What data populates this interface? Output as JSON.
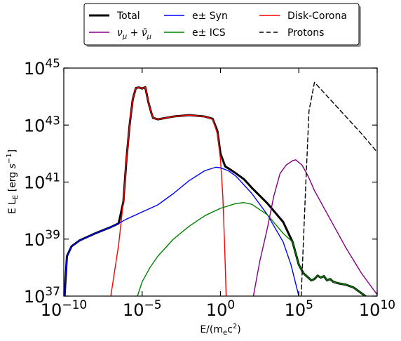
{
  "chart_data": {
    "type": "line",
    "title": "",
    "xlabel": {
      "main": "E/(m",
      "sub": "e",
      "tail": "c",
      "sup": "2",
      "close": ")"
    },
    "ylabel": {
      "main": "E L",
      "sub": "E",
      "tail": " [erg ",
      "unit": "s",
      "unitsup": "−1",
      "close": "]"
    },
    "x_scale": "log",
    "y_scale": "log",
    "xlim": [
      1e-10,
      10000000000.0
    ],
    "ylim": [
      1e+37,
      1e+45
    ],
    "x_ticks": [
      {
        "value": 1e-10,
        "base": "10",
        "exp": "−10"
      },
      {
        "value": 1e-05,
        "base": "10",
        "exp": "−5"
      },
      {
        "value": 1,
        "base": "10",
        "exp": "0"
      },
      {
        "value": 100000.0,
        "base": "10",
        "exp": "5"
      },
      {
        "value": 10000000000.0,
        "base": "10",
        "exp": "10"
      }
    ],
    "y_ticks": [
      {
        "value": 1e+37,
        "base": "10",
        "exp": "37"
      },
      {
        "value": 1e+39,
        "base": "10",
        "exp": "39"
      },
      {
        "value": 1e+41,
        "base": "10",
        "exp": "41"
      },
      {
        "value": 1e+43,
        "base": "10",
        "exp": "43"
      },
      {
        "value": 1e+45,
        "base": "10",
        "exp": "45"
      }
    ],
    "legend_position": "top-center",
    "series": [
      {
        "name": "Total",
        "color": "#000000",
        "style": "solid",
        "width": 3,
        "points": [
          [
            -9.95,
            37.0
          ],
          [
            -9.8,
            38.4
          ],
          [
            -9.5,
            38.75
          ],
          [
            -9,
            38.95
          ],
          [
            -8,
            39.2
          ],
          [
            -7,
            39.42
          ],
          [
            -6.5,
            39.55
          ],
          [
            -6.2,
            40.3
          ],
          [
            -6.0,
            41.8
          ],
          [
            -5.8,
            43.0
          ],
          [
            -5.6,
            43.9
          ],
          [
            -5.4,
            44.3
          ],
          [
            -5.2,
            44.32
          ],
          [
            -5.0,
            44.28
          ],
          [
            -4.8,
            44.33
          ],
          [
            -4.6,
            43.8
          ],
          [
            -4.4,
            43.4
          ],
          [
            -4.3,
            43.25
          ],
          [
            -4.0,
            43.2
          ],
          [
            -3.0,
            43.3
          ],
          [
            -2.0,
            43.35
          ],
          [
            -1.0,
            43.3
          ],
          [
            -0.5,
            43.22
          ],
          [
            -0.2,
            42.8
          ],
          [
            0.0,
            42.0
          ],
          [
            0.3,
            41.55
          ],
          [
            0.6,
            41.45
          ],
          [
            1.0,
            41.3
          ],
          [
            1.5,
            41.1
          ],
          [
            2,
            40.8
          ],
          [
            3,
            40.25
          ],
          [
            4,
            39.6
          ],
          [
            4.6,
            38.9
          ],
          [
            5,
            38.1
          ],
          [
            5.3,
            37.8
          ],
          [
            5.6,
            37.65
          ],
          [
            5.8,
            37.55
          ],
          [
            6.0,
            37.6
          ],
          [
            6.2,
            37.72
          ],
          [
            6.4,
            37.65
          ],
          [
            6.6,
            37.7
          ],
          [
            6.8,
            37.55
          ],
          [
            7.0,
            37.6
          ],
          [
            7.2,
            37.5
          ],
          [
            7.5,
            37.45
          ],
          [
            8,
            37.4
          ],
          [
            8.5,
            37.3
          ],
          [
            9,
            37.1
          ],
          [
            9.25,
            37.0
          ]
        ]
      },
      {
        "name": "Disk-Corona",
        "color": "#ff0000",
        "style": "solid",
        "width": 1.4,
        "points": [
          [
            -7.0,
            37.0
          ],
          [
            -6.5,
            38.8
          ],
          [
            -6.2,
            40.3
          ],
          [
            -6.0,
            41.8
          ],
          [
            -5.8,
            43.0
          ],
          [
            -5.6,
            43.9
          ],
          [
            -5.4,
            44.3
          ],
          [
            -5.2,
            44.32
          ],
          [
            -5.0,
            44.28
          ],
          [
            -4.8,
            44.33
          ],
          [
            -4.6,
            43.8
          ],
          [
            -4.4,
            43.4
          ],
          [
            -4.3,
            43.25
          ],
          [
            -4.0,
            43.2
          ],
          [
            -3.0,
            43.3
          ],
          [
            -2.0,
            43.35
          ],
          [
            -1.0,
            43.3
          ],
          [
            -0.5,
            43.2
          ],
          [
            -0.2,
            42.7
          ],
          [
            0.0,
            41.8
          ],
          [
            0.15,
            40.5
          ],
          [
            0.25,
            39.0
          ],
          [
            0.32,
            37.8
          ],
          [
            0.36,
            37.0
          ]
        ]
      },
      {
        "name": "e± Syn",
        "color": "#0000ff",
        "style": "solid",
        "width": 1.4,
        "points": [
          [
            -9.95,
            37.0
          ],
          [
            -9.8,
            38.4
          ],
          [
            -9.5,
            38.75
          ],
          [
            -9,
            38.95
          ],
          [
            -8,
            39.2
          ],
          [
            -7,
            39.42
          ],
          [
            -6.5,
            39.55
          ],
          [
            -6,
            39.7
          ],
          [
            -5,
            39.95
          ],
          [
            -4,
            40.2
          ],
          [
            -3,
            40.6
          ],
          [
            -2,
            41.05
          ],
          [
            -1,
            41.4
          ],
          [
            -0.3,
            41.52
          ],
          [
            0,
            41.5
          ],
          [
            0.5,
            41.4
          ],
          [
            1,
            41.2
          ],
          [
            2,
            40.6
          ],
          [
            3,
            39.85
          ],
          [
            4,
            38.9
          ],
          [
            4.5,
            38.1
          ],
          [
            5,
            37.0
          ]
        ]
      },
      {
        "name": "e± ICS",
        "color": "#008000",
        "style": "solid",
        "width": 1.4,
        "points": [
          [
            -5.3,
            37.0
          ],
          [
            -5,
            37.5
          ],
          [
            -4.5,
            38.0
          ],
          [
            -4,
            38.4
          ],
          [
            -3,
            39.0
          ],
          [
            -2,
            39.45
          ],
          [
            -1,
            39.82
          ],
          [
            0,
            40.08
          ],
          [
            1,
            40.25
          ],
          [
            1.5,
            40.28
          ],
          [
            2,
            40.22
          ],
          [
            3,
            39.85
          ],
          [
            4,
            39.2
          ],
          [
            4.6,
            38.9
          ],
          [
            5,
            38.1
          ],
          [
            5.3,
            37.8
          ],
          [
            5.6,
            37.65
          ],
          [
            5.8,
            37.55
          ],
          [
            6.0,
            37.6
          ],
          [
            6.2,
            37.72
          ],
          [
            6.4,
            37.65
          ],
          [
            6.6,
            37.7
          ],
          [
            6.8,
            37.55
          ],
          [
            7.0,
            37.6
          ],
          [
            7.2,
            37.5
          ],
          [
            7.5,
            37.45
          ],
          [
            8,
            37.4
          ],
          [
            8.5,
            37.3
          ],
          [
            9,
            37.1
          ],
          [
            9.25,
            37.0
          ]
        ]
      },
      {
        "name": "νμ + ν̄μ",
        "color": "#800080",
        "style": "solid",
        "width": 1.4,
        "points": [
          [
            2.1,
            37.0
          ],
          [
            2.5,
            38.2
          ],
          [
            3,
            39.4
          ],
          [
            3.4,
            40.5
          ],
          [
            3.8,
            41.3
          ],
          [
            4.2,
            41.6
          ],
          [
            4.6,
            41.75
          ],
          [
            4.8,
            41.78
          ],
          [
            5.2,
            41.6
          ],
          [
            5.6,
            41.2
          ],
          [
            6,
            40.7
          ],
          [
            7,
            39.7
          ],
          [
            8,
            38.7
          ],
          [
            9,
            37.8
          ],
          [
            10,
            37.05
          ]
        ]
      },
      {
        "name": "Protons",
        "color": "#000000",
        "style": "dashed",
        "width": 1.4,
        "points": [
          [
            5.15,
            37.0
          ],
          [
            5.45,
            41.0
          ],
          [
            5.65,
            43.5
          ],
          [
            6.0,
            44.5
          ],
          [
            7,
            43.9
          ],
          [
            8,
            43.3
          ],
          [
            9,
            42.7
          ],
          [
            10,
            42.05
          ]
        ]
      }
    ],
    "legend": {
      "columns": [
        [
          {
            "series": "Total",
            "text": "Total"
          },
          {
            "series": "νμ + ν̄μ",
            "text": "νμ + ν̄μ",
            "math": true
          }
        ],
        [
          {
            "series": "e± Syn",
            "text": "e± Syn"
          },
          {
            "series": "e± ICS",
            "text": "e± ICS"
          }
        ],
        [
          {
            "series": "Disk-Corona",
            "text": "Disk-Corona"
          },
          {
            "series": "Protons",
            "text": "Protons"
          }
        ]
      ]
    }
  }
}
